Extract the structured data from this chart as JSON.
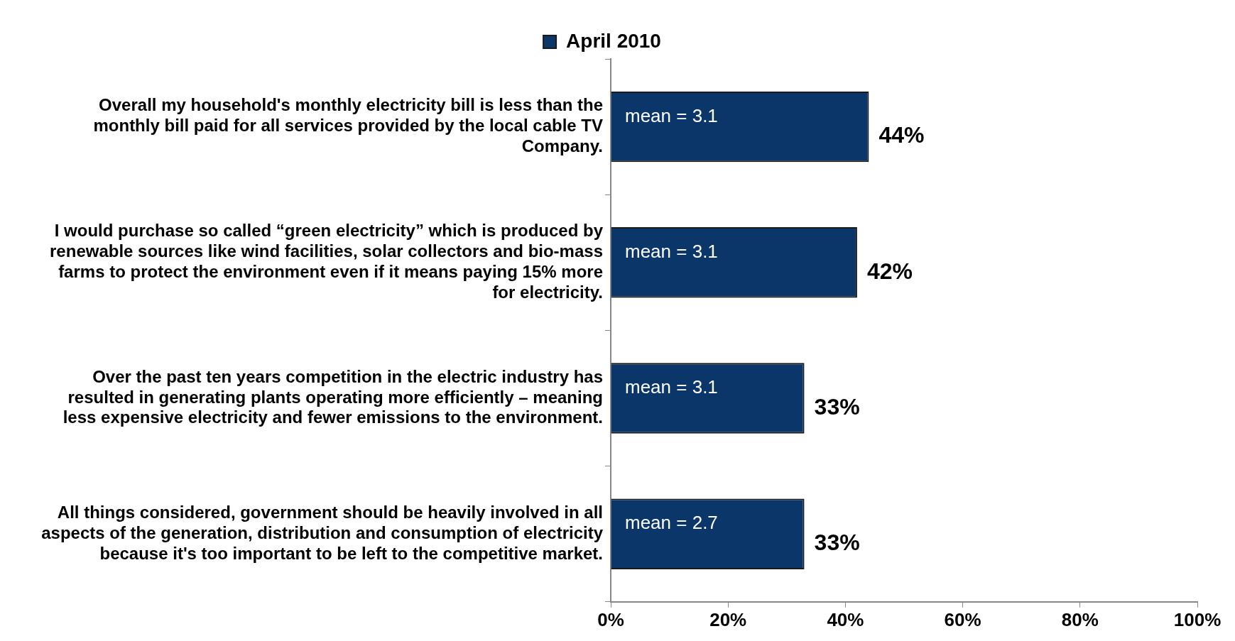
{
  "chart_data": {
    "type": "bar",
    "orientation": "horizontal",
    "categories": [
      "Overall my household's monthly electricity bill is less than the monthly bill paid for all services provided by the local cable TV Company.",
      "I would purchase so called “green electricity” which is produced by renewable sources like wind facilities, solar collectors and bio-mass farms to protect the environment even if it means paying 15% more for electricity.",
      "Over the past ten years competition in the electric industry has resulted in generating plants operating more efficiently – meaning less expensive electricity and fewer emissions to the environment.",
      "All things considered, government should be heavily involved in all aspects of the generation, distribution and consumption of electricity because it's too important to be left to the competitive market."
    ],
    "series": [
      {
        "name": "April 2010",
        "color": "#0b3669",
        "values": [
          44,
          42,
          33,
          33
        ],
        "value_labels": [
          "44%",
          "42%",
          "33%",
          "33%"
        ]
      }
    ],
    "xlim": [
      0,
      100
    ],
    "xticks": [
      {
        "value": 0,
        "label": "0%"
      },
      {
        "value": 20,
        "label": "20%"
      },
      {
        "value": 40,
        "label": "40%"
      },
      {
        "value": 60,
        "label": "60%"
      },
      {
        "value": 80,
        "label": "80%"
      },
      {
        "value": 100,
        "label": "100%"
      }
    ],
    "annotations": [
      "mean = 3.1",
      "mean = 3.1",
      "mean = 3.1",
      "mean = 2.7"
    ],
    "grid": false,
    "legend": "top"
  }
}
